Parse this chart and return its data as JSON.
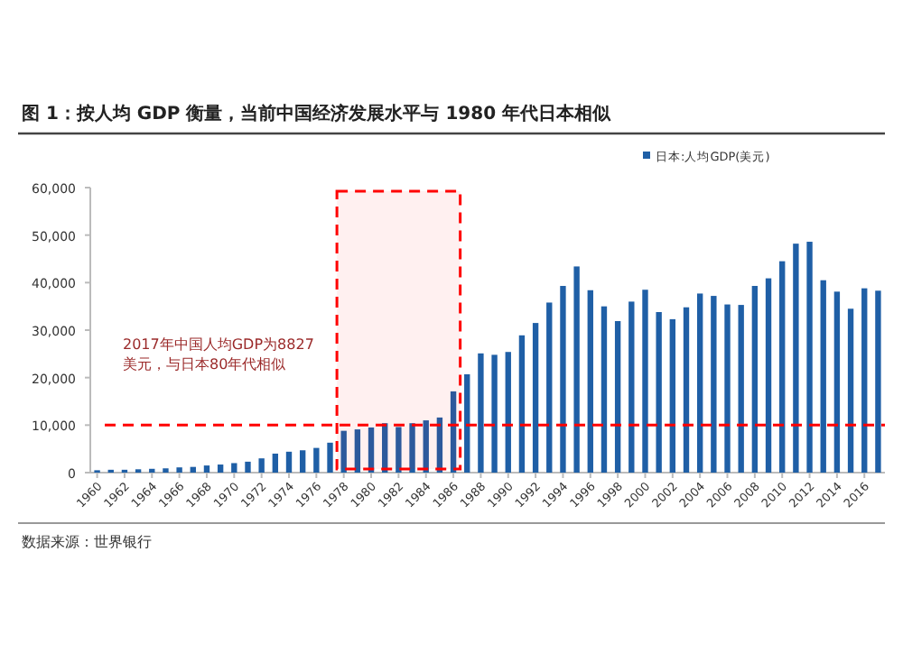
{
  "chart_data": {
    "type": "bar",
    "title": "图 1：按人均 GDP 衡量，当前中国经济发展水平与 1980 年代日本相似",
    "x": [
      1960,
      1961,
      1962,
      1963,
      1964,
      1965,
      1966,
      1967,
      1968,
      1969,
      1970,
      1971,
      1972,
      1973,
      1974,
      1975,
      1976,
      1977,
      1978,
      1979,
      1980,
      1981,
      1982,
      1983,
      1984,
      1985,
      1986,
      1987,
      1988,
      1989,
      1990,
      1991,
      1992,
      1993,
      1994,
      1995,
      1996,
      1997,
      1998,
      1999,
      2000,
      2001,
      2002,
      2003,
      2004,
      2005,
      2006,
      2007,
      2008,
      2009,
      2010,
      2011,
      2012,
      2013,
      2014,
      2015,
      2016,
      2017
    ],
    "series": [
      {
        "name": "日本:人均GDP(美元)",
        "color": "#1f5fa6",
        "values": [
          500,
          600,
          600,
          700,
          800,
          900,
          1100,
          1200,
          1500,
          1700,
          2000,
          2300,
          3000,
          4000,
          4400,
          4700,
          5200,
          6300,
          8800,
          9100,
          9500,
          10400,
          9600,
          10400,
          11000,
          11600,
          17100,
          20700,
          25100,
          24800,
          25400,
          28900,
          31500,
          35800,
          39300,
          43400,
          38400,
          35000,
          31900,
          36000,
          38500,
          33800,
          32300,
          34800,
          37700,
          37200,
          35400,
          35300,
          39300,
          40900,
          44500,
          48200,
          48600,
          40500,
          38100,
          34500,
          38800,
          38300
        ]
      }
    ],
    "xlim": [
      1959.5,
      2017.5
    ],
    "xticks": [
      1960,
      1962,
      1964,
      1966,
      1968,
      1970,
      1972,
      1974,
      1976,
      1978,
      1980,
      1982,
      1984,
      1986,
      1988,
      1990,
      1992,
      1994,
      1996,
      1998,
      2000,
      2002,
      2004,
      2006,
      2008,
      2010,
      2012,
      2014,
      2016
    ],
    "ylim": [
      0,
      60000
    ],
    "yticks": [
      {
        "value": 0,
        "label": "0"
      },
      {
        "value": 10000,
        "label": "10,000"
      },
      {
        "value": 20000,
        "label": "20,000"
      },
      {
        "value": 30000,
        "label": "30,000"
      },
      {
        "value": 40000,
        "label": "40,000"
      },
      {
        "value": 50000,
        "label": "50,000"
      },
      {
        "value": 60000,
        "label": "60,000"
      }
    ],
    "ref_lines": [
      {
        "axis": "y",
        "value": 10000,
        "label": null,
        "color": "#ff0000",
        "line_style": "dashed"
      }
    ],
    "bands": [
      {
        "axis": "x",
        "from": 1977.5,
        "to": 1986.5,
        "label": null,
        "color": "#ff0000"
      }
    ],
    "annotations": [
      "2017年中国人均GDP为8827美元，与日本80年代相似",
      "数据来源：世界银行"
    ],
    "legend": "top right",
    "grid": false
  }
}
